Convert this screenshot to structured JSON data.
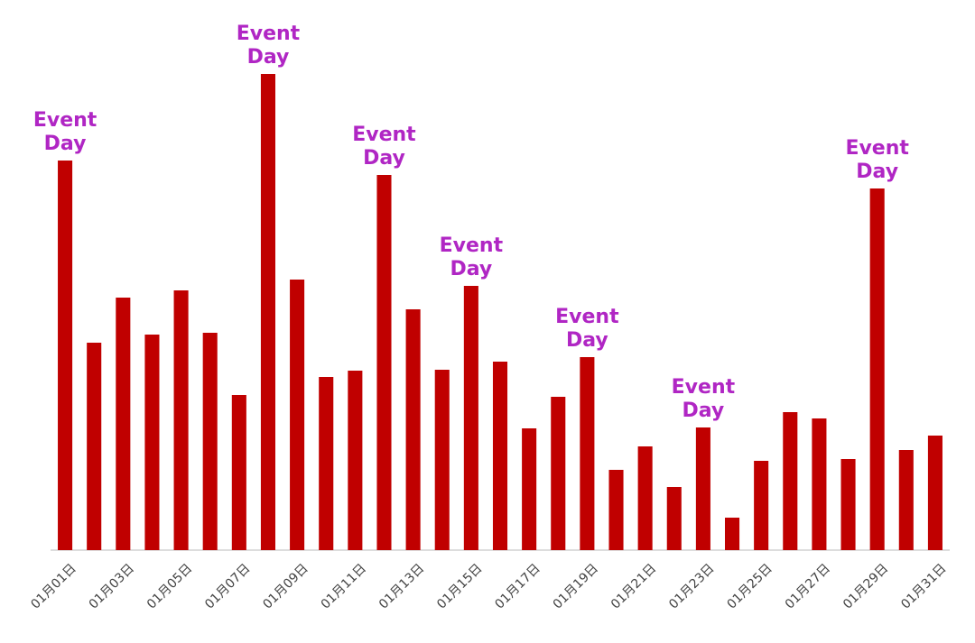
{
  "chart_data": {
    "type": "bar",
    "categories": [
      "01月01日",
      null,
      "01月03日",
      null,
      "01月05日",
      null,
      "01月07日",
      null,
      "01月09日",
      null,
      "01月11日",
      null,
      "01月13日",
      null,
      "01月15日",
      null,
      "01月17日",
      null,
      "01月19日",
      null,
      "01月21日",
      null,
      "01月23日",
      null,
      "01月25日",
      null,
      "01月27日",
      null,
      "01月29日",
      null,
      "01月31日"
    ],
    "values": [
      432,
      230,
      280,
      239,
      288,
      241,
      172,
      528,
      300,
      192,
      199,
      416,
      267,
      200,
      293,
      209,
      135,
      170,
      214,
      89,
      115,
      70,
      136,
      36,
      99,
      153,
      146,
      101,
      401,
      111,
      127
    ],
    "annotations": [
      "Event Day",
      null,
      null,
      null,
      null,
      null,
      null,
      "Event Day",
      null,
      null,
      null,
      "Event Day",
      null,
      null,
      "Event Day",
      null,
      null,
      null,
      "Event Day",
      null,
      null,
      null,
      "Event Day",
      null,
      null,
      null,
      null,
      null,
      "Event Day",
      null,
      null
    ],
    "color": "#c00000",
    "annotation_color": "#b026c4",
    "ylim": [
      0,
      560
    ]
  }
}
